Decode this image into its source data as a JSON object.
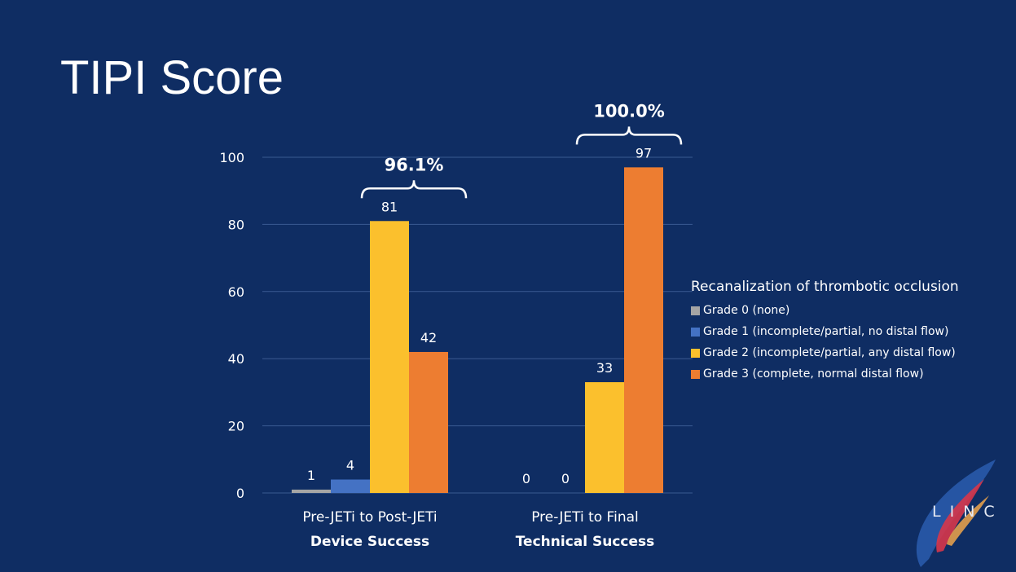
{
  "slide": {
    "title": "TIPI Score"
  },
  "chart_data": {
    "type": "bar",
    "categories": [
      {
        "line1": "Pre-JETi to Post-JETi",
        "line2": "Device Success"
      },
      {
        "line1": "Pre-JETi to Final",
        "line2": "Technical Success"
      }
    ],
    "series": [
      {
        "name": "Grade 0 (none)",
        "color": "#a5a5a5",
        "values": [
          1,
          0
        ]
      },
      {
        "name": "Grade 1  (incomplete/partial, no distal flow)",
        "color": "#4472c4",
        "values": [
          4,
          0
        ]
      },
      {
        "name": "Grade 2 (incomplete/partial, any distal flow)",
        "color": "#fbc02d",
        "values": [
          81,
          33
        ]
      },
      {
        "name": "Grade 3 (complete, normal distal flow)",
        "color": "#ed7d31",
        "values": [
          42,
          97
        ]
      }
    ],
    "ylim": [
      0,
      100
    ],
    "yticks": [
      0,
      20,
      40,
      60,
      80,
      100
    ],
    "legend_title": "Recanalization of thrombotic occlusion",
    "legend_position": "right",
    "grid": true,
    "annotations": [
      {
        "text": "96.1%",
        "category": 0,
        "spans_series": [
          2,
          3
        ]
      },
      {
        "text": "100.0%",
        "category": 1,
        "spans_series": [
          2,
          3
        ]
      }
    ]
  },
  "logo": {
    "text": "LINC"
  }
}
